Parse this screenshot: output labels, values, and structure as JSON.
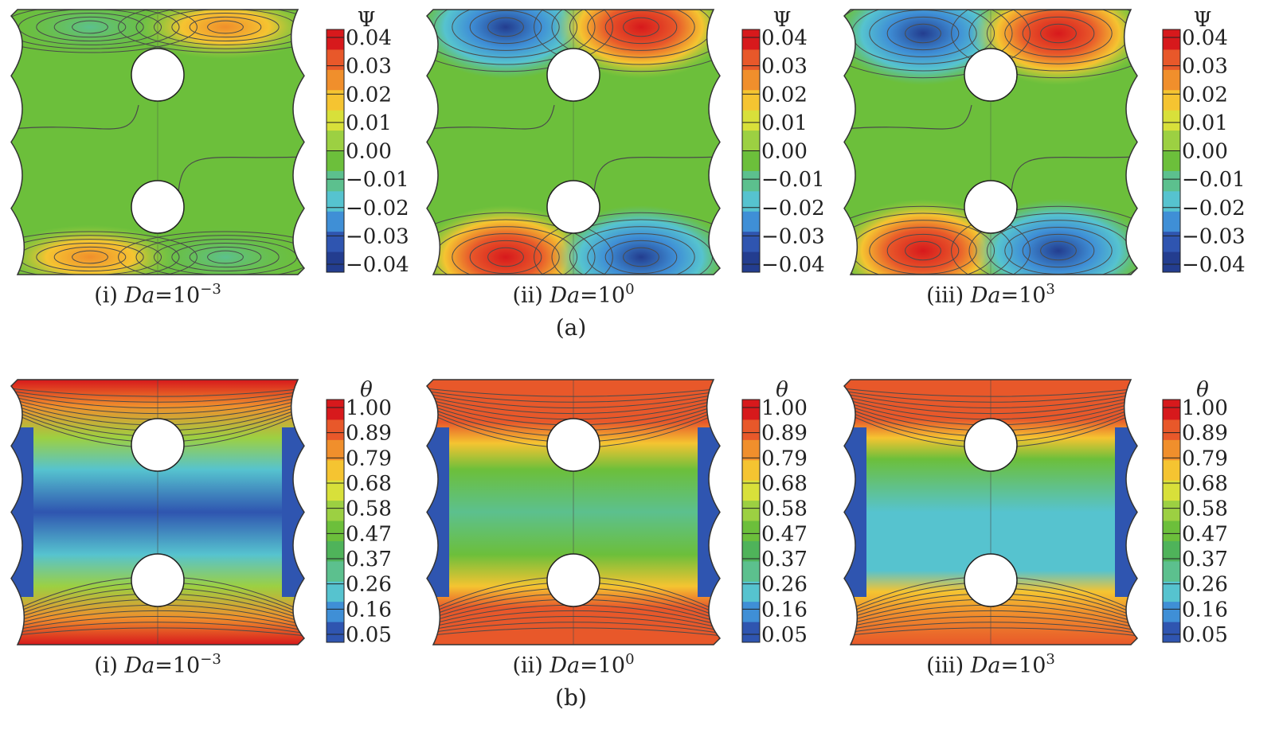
{
  "figure": {
    "row_labels": [
      "(a)",
      "(b)"
    ],
    "rows": [
      {
        "variable": "Ψ",
        "colorbar_ticks": [
          "0.04",
          "0.03",
          "0.02",
          "0.01",
          "0.00",
          "−0.01",
          "−0.02",
          "−0.03",
          "−0.04"
        ],
        "colorbar_colors": [
          "#d7191c",
          "#e8582a",
          "#f08f2c",
          "#f5c431",
          "#d8e03a",
          "#9cd042",
          "#6cbf3b",
          "#5cc08e",
          "#56c3cf",
          "#3f8fd6",
          "#2f55b0",
          "#233d8f"
        ],
        "panels": [
          {
            "caption": {
              "roman": "(i)",
              "symbol": "Da",
              "eq": "=",
              "base": "10",
              "exponent": "−3"
            }
          },
          {
            "caption": {
              "roman": "(ii)",
              "symbol": "Da",
              "eq": "=",
              "base": "10",
              "exponent": "0"
            }
          },
          {
            "caption": {
              "roman": "(iii)",
              "symbol": "Da",
              "eq": "=",
              "base": "10",
              "exponent": "3"
            }
          }
        ]
      },
      {
        "variable": "θ",
        "colorbar_ticks": [
          "1.00",
          "0.89",
          "0.79",
          "0.68",
          "0.58",
          "0.47",
          "0.37",
          "0.26",
          "0.16",
          "0.05"
        ],
        "colorbar_colors": [
          "#d7191c",
          "#e8582a",
          "#f08f2c",
          "#f5c431",
          "#d8e03a",
          "#9cd042",
          "#6cbf3b",
          "#4fb35a",
          "#5cc08e",
          "#56c3cf",
          "#3f8fd6",
          "#2f55b0"
        ],
        "panels": [
          {
            "caption": {
              "roman": "(i)",
              "symbol": "Da",
              "eq": "=",
              "base": "10",
              "exponent": "−3"
            }
          },
          {
            "caption": {
              "roman": "(ii)",
              "symbol": "Da",
              "eq": "=",
              "base": "10",
              "exponent": "0"
            }
          },
          {
            "caption": {
              "roman": "(iii)",
              "symbol": "Da",
              "eq": "=",
              "base": "10",
              "exponent": "3"
            }
          }
        ]
      }
    ],
    "colors": {
      "background_green": "#6cbf3b",
      "contour_line": "#4a4a4a",
      "cylinder_fill": "#ffffff"
    }
  }
}
